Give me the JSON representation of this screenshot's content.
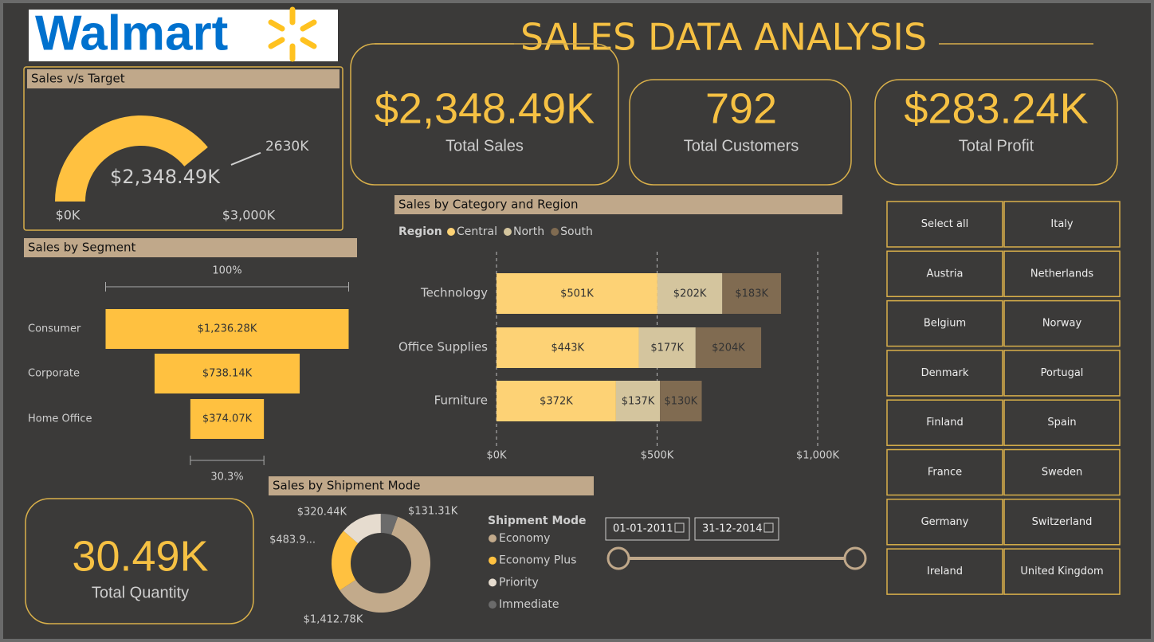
{
  "logo": "Walmart",
  "title": "SALES DATA ANALYSIS",
  "kpis": [
    {
      "value": "$2,348.49K",
      "label": "Total Sales"
    },
    {
      "value": "792",
      "label": "Total Customers"
    },
    {
      "value": "$283.24K",
      "label": "Total Profit"
    },
    {
      "value": "30.49K",
      "label": "Total Quantity"
    }
  ],
  "chart_data": [
    {
      "type": "gauge",
      "title": "Sales v/s Target",
      "value": 2348.49,
      "value_label": "$2,348.49K",
      "target": 2630,
      "target_label": "2630K",
      "ylim": [
        0,
        3000
      ],
      "yticks": [
        {
          "value": 0,
          "label": "$0K"
        },
        {
          "value": 3000,
          "label": "$3,000K"
        }
      ],
      "color": "#ffc140"
    },
    {
      "type": "funnel",
      "title": "Sales by Segment",
      "categories": [
        "Consumer",
        "Corporate",
        "Home Office"
      ],
      "values": [
        1236.28,
        738.14,
        374.07
      ],
      "value_labels": [
        "$1,236.28K",
        "$738.14K",
        "$374.07K"
      ],
      "top_percent": {
        "value": 100,
        "label": "100%"
      },
      "bottom_percent": {
        "value": 30.3,
        "label": "30.3%"
      },
      "color": "#ffc140"
    },
    {
      "type": "stacked_bar",
      "title": "Sales by Category and Region",
      "legend_title": "Region",
      "categories": [
        "Technology",
        "Office Supplies",
        "Furniture"
      ],
      "series": [
        {
          "name": "Central",
          "color": "#fdd275",
          "values": [
            501,
            443,
            372
          ],
          "value_labels": [
            "$501K",
            "$443K",
            "$372K"
          ]
        },
        {
          "name": "North",
          "color": "#d4c59e",
          "values": [
            202,
            177,
            137
          ],
          "value_labels": [
            "$202K",
            "$177K",
            "$137K"
          ]
        },
        {
          "name": "South",
          "color": "#806b51",
          "values": [
            183,
            204,
            130
          ],
          "value_labels": [
            "$183K",
            "$204K",
            "$130K"
          ]
        }
      ],
      "xlim": [
        0,
        1000
      ],
      "xticks": [
        {
          "value": 0,
          "label": "$0K"
        },
        {
          "value": 500,
          "label": "$500K"
        },
        {
          "value": 1000,
          "label": "$1,000K"
        }
      ],
      "grid": true
    },
    {
      "type": "donut",
      "title": "Sales by Shipment Mode",
      "legend_title": "Shipment Mode",
      "categories": [
        "Economy",
        "Economy Plus",
        "Priority",
        "Immediate"
      ],
      "values": [
        1412.78,
        483.96,
        320.44,
        131.31
      ],
      "value_labels": [
        "$1,412.78K",
        "$483.9...",
        "$320.44K",
        "$131.31K"
      ],
      "colors": [
        "#c2aa8b",
        "#ffc140",
        "#e6dccf",
        "#6b6b6b"
      ]
    }
  ],
  "date_slicer": {
    "start": "01-01-2011",
    "end": "31-12-2014"
  },
  "country_slicer": [
    "Select all",
    "Italy",
    "Austria",
    "Netherlands",
    "Belgium",
    "Norway",
    "Denmark",
    "Portugal",
    "Finland",
    "Spain",
    "France",
    "Sweden",
    "Germany",
    "Switzerland",
    "Ireland",
    "United Kingdom"
  ]
}
